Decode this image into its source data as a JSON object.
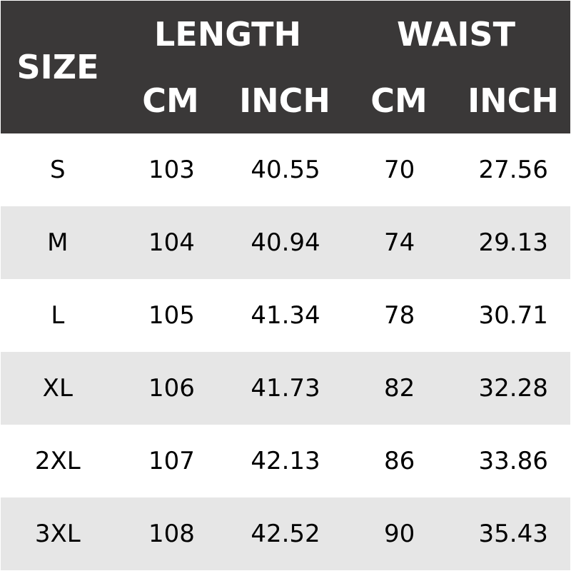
{
  "header": {
    "size": "SIZE",
    "length": "LENGTH",
    "waist": "WAIST",
    "length_cm": "CM",
    "length_inch": "INCH",
    "waist_cm": "CM",
    "waist_inch": "INCH"
  },
  "colors": {
    "header_bg": "#3a3838",
    "row_alt": "#e6e6e6"
  },
  "rows": [
    {
      "size": "S",
      "length_cm": "103",
      "length_inch": "40.55",
      "waist_cm": "70",
      "waist_inch": "27.56"
    },
    {
      "size": "M",
      "length_cm": "104",
      "length_inch": "40.94",
      "waist_cm": "74",
      "waist_inch": "29.13"
    },
    {
      "size": "L",
      "length_cm": "105",
      "length_inch": "41.34",
      "waist_cm": "78",
      "waist_inch": "30.71"
    },
    {
      "size": "XL",
      "length_cm": "106",
      "length_inch": "41.73",
      "waist_cm": "82",
      "waist_inch": "32.28"
    },
    {
      "size": "2XL",
      "length_cm": "107",
      "length_inch": "42.13",
      "waist_cm": "86",
      "waist_inch": "33.86"
    },
    {
      "size": "3XL",
      "length_cm": "108",
      "length_inch": "42.52",
      "waist_cm": "90",
      "waist_inch": "35.43"
    }
  ]
}
